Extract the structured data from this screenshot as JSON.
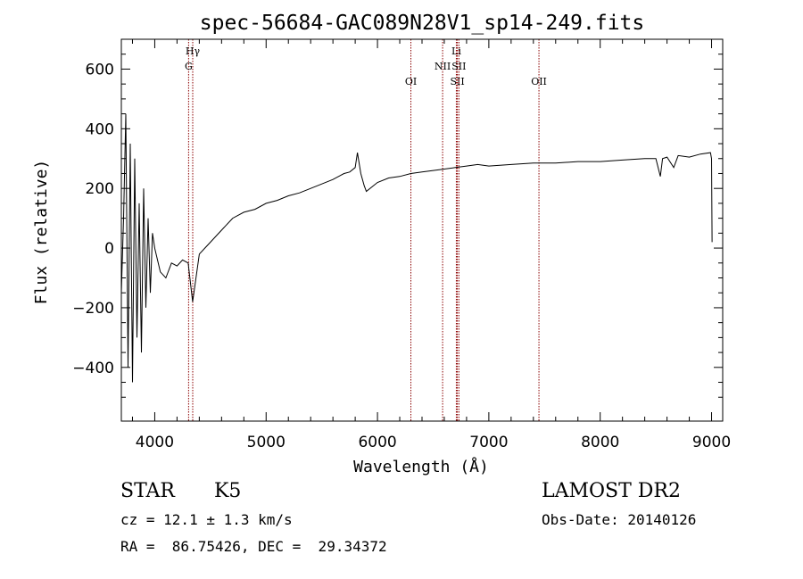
{
  "chart_data": {
    "type": "line",
    "title": "spec-56684-GAC089N28V1_sp14-249.fits",
    "xlabel": "Wavelength (Å)",
    "ylabel": "Flux (relative)",
    "xlim": [
      3700,
      9100
    ],
    "ylim": [
      -580,
      700
    ],
    "xticks": [
      4000,
      5000,
      6000,
      7000,
      8000,
      9000
    ],
    "yticks": [
      -400,
      -200,
      0,
      200,
      400,
      600
    ],
    "xtick_labels": [
      "4000",
      "5000",
      "6000",
      "7000",
      "8000",
      "9000"
    ],
    "ytick_labels": [
      "−400",
      "−200",
      "0",
      "200",
      "400",
      "600"
    ],
    "grid": false,
    "series": [
      {
        "x": [
          3700,
          3720,
          3740,
          3760,
          3780,
          3800,
          3820,
          3840,
          3860,
          3880,
          3900,
          3920,
          3940,
          3960,
          3980,
          4000,
          4050,
          4100,
          4150,
          4200,
          4250,
          4300,
          4340,
          4400,
          4450,
          4500,
          4600,
          4700,
          4800,
          4900,
          5000,
          5100,
          5200,
          5300,
          5400,
          5500,
          5600,
          5700,
          5750,
          5800,
          5820,
          5850,
          5880,
          5900,
          6000,
          6100,
          6200,
          6300,
          6400,
          6500,
          6600,
          6700,
          6800,
          6900,
          7000,
          7200,
          7400,
          7600,
          7800,
          8000,
          8200,
          8400,
          8500,
          8540,
          8560,
          8600,
          8660,
          8700,
          8800,
          8900,
          8990,
          9000,
          9005
        ],
        "y": [
          -150,
          100,
          450,
          -400,
          350,
          -450,
          300,
          -300,
          150,
          -350,
          200,
          -200,
          100,
          -150,
          50,
          0,
          -80,
          -100,
          -50,
          -60,
          -40,
          -50,
          -180,
          -20,
          0,
          20,
          60,
          100,
          120,
          130,
          150,
          160,
          175,
          185,
          200,
          215,
          230,
          250,
          255,
          270,
          320,
          250,
          210,
          190,
          220,
          235,
          240,
          250,
          255,
          260,
          265,
          270,
          275,
          280,
          275,
          280,
          285,
          285,
          290,
          290,
          295,
          300,
          300,
          240,
          300,
          305,
          270,
          310,
          305,
          315,
          320,
          300,
          20
        ]
      }
    ],
    "lines": [
      {
        "label": "G",
        "x": 4304,
        "row": 2
      },
      {
        "label": "Hγ",
        "x": 4341,
        "row": 1
      },
      {
        "label": "OI",
        "x": 6300,
        "row": 3
      },
      {
        "label": "NII",
        "x": 6585,
        "row": 2
      },
      {
        "label": "Li",
        "x": 6708,
        "row": 1
      },
      {
        "label": "SII",
        "x": 6717,
        "row": 3
      },
      {
        "label": "SII",
        "x": 6731,
        "row": 2
      },
      {
        "label": "OII",
        "x": 7450,
        "row": 3
      }
    ]
  },
  "info": {
    "object_class": "STAR",
    "subclass": "K5",
    "cz": "cz = 12.1 ± 1.3 km/s",
    "coords": "RA =  86.75426, DEC =  29.34372",
    "survey": "LAMOST DR2",
    "obs_date": "Obs-Date: 20140126"
  },
  "colors": {
    "spectrum": "#000000",
    "line_marker": "#8b0000",
    "axes": "#000000"
  }
}
